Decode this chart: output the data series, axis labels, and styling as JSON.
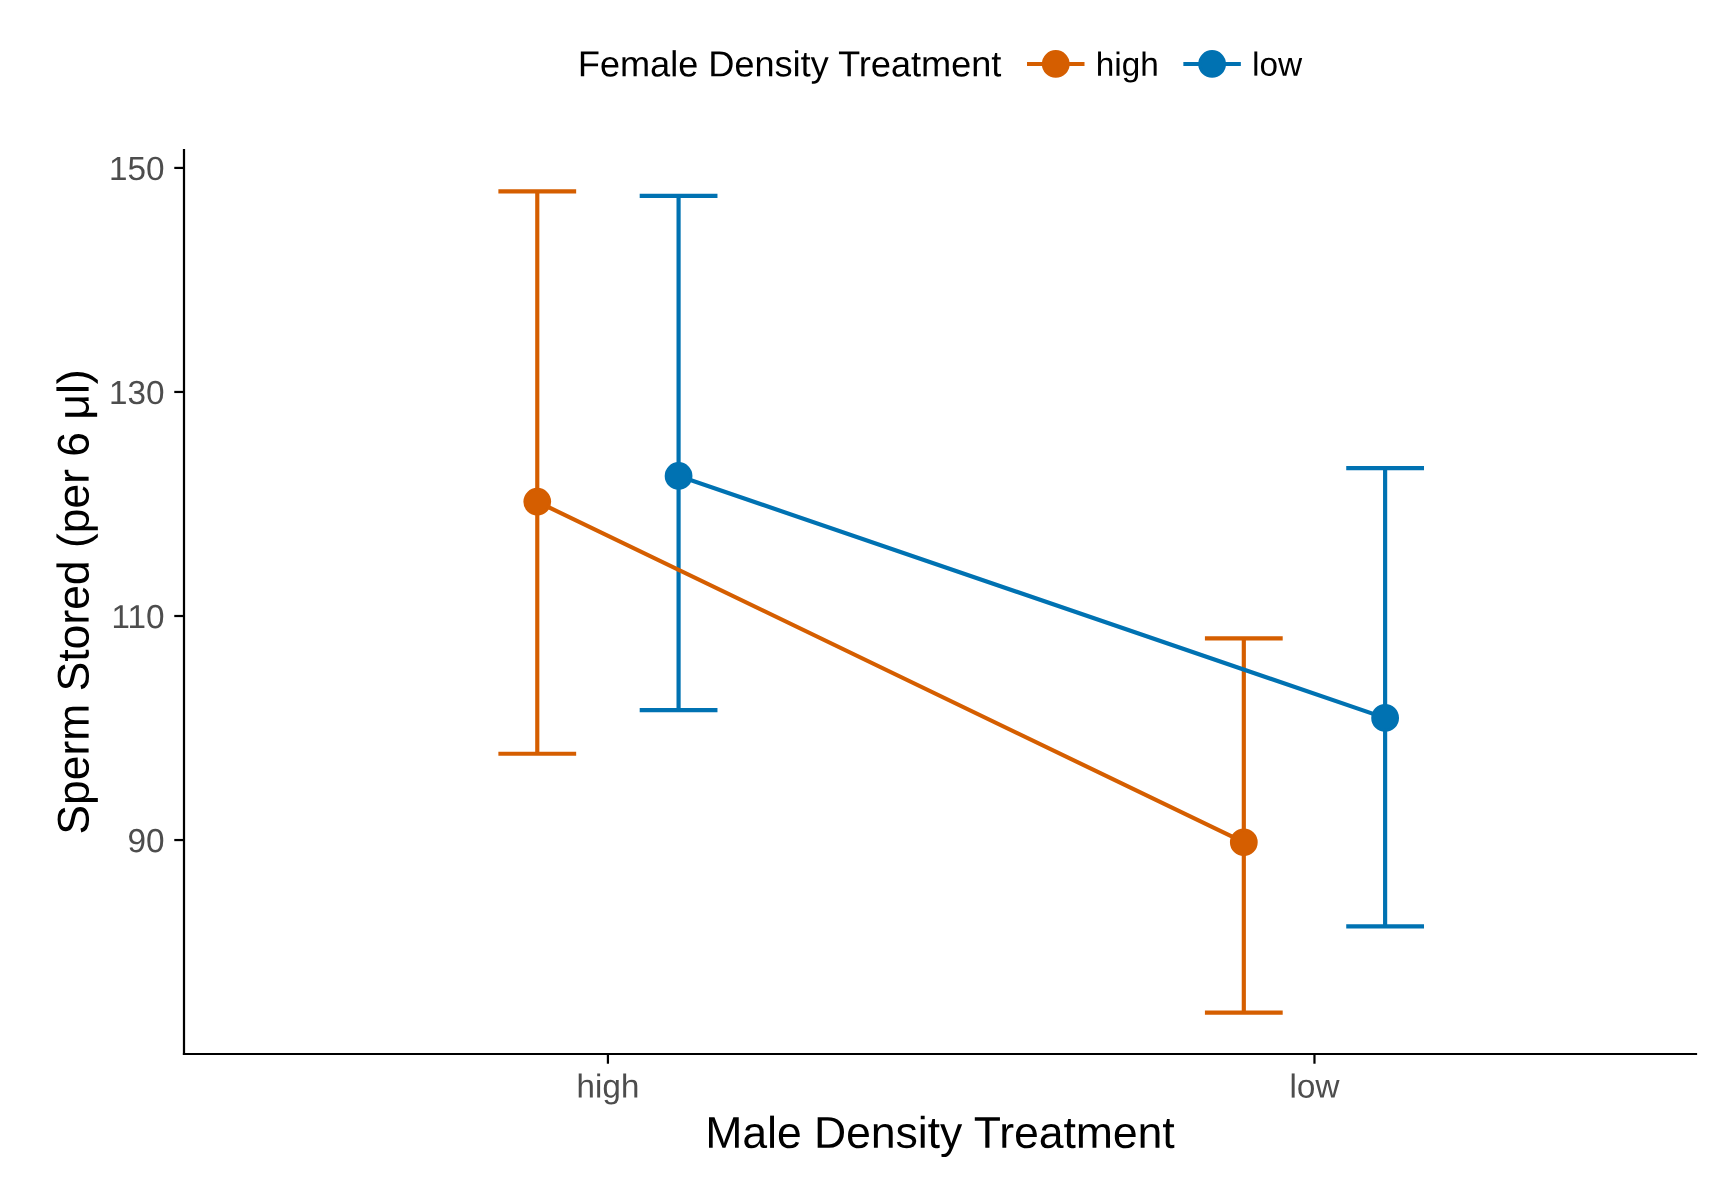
{
  "chart_data": {
    "type": "line",
    "xlabel": "Male Density Treatment",
    "ylabel": "Sperm Stored (per 6 μl)",
    "legend_title": "Female Density Treatment",
    "categories": [
      "high",
      "low"
    ],
    "series": [
      {
        "name": "high",
        "color": "#d55e00",
        "values": [
          120.2,
          89.8
        ],
        "errors": [
          [
            97.7,
            147.9
          ],
          [
            74.6,
            108.0
          ]
        ]
      },
      {
        "name": "low",
        "color": "#0072b2",
        "values": [
          122.5,
          100.9
        ],
        "errors": [
          [
            101.6,
            147.5
          ],
          [
            82.3,
            123.2
          ]
        ]
      }
    ],
    "ylim": [
      70.9,
      151.6
    ],
    "yticks": [
      90,
      110,
      130,
      150
    ],
    "grid": false,
    "legend": "top",
    "marker": "circle",
    "line_style": "solid"
  }
}
